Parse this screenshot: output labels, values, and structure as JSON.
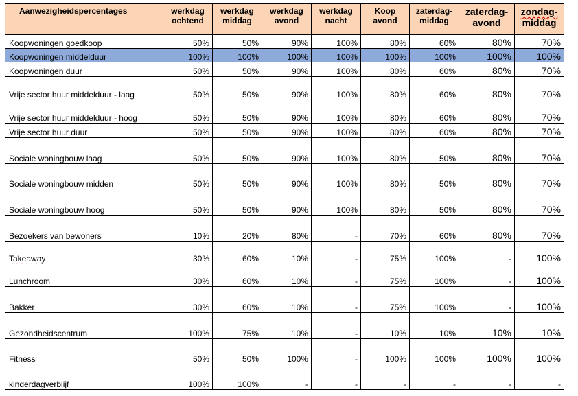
{
  "header": {
    "title": "Aanwezigheidspercentages",
    "columns": [
      [
        "werkdag",
        "ochtend"
      ],
      [
        "werkdag",
        "middag"
      ],
      [
        "werkdag",
        "avond"
      ],
      [
        "werkdag",
        "nacht"
      ],
      [
        "Koop",
        "avond"
      ],
      [
        "zaterdag-",
        "middag"
      ],
      [
        "zaterdag-",
        "avond"
      ],
      [
        "zondag-",
        "middag"
      ]
    ]
  },
  "rows": [
    {
      "name": "Koopwoningen goedkoop",
      "values": [
        "50%",
        "50%",
        "90%",
        "100%",
        "80%",
        "60%",
        "80%",
        "70%"
      ]
    },
    {
      "name": "Koopwoningen middelduur",
      "values": [
        "100%",
        "100%",
        "100%",
        "100%",
        "100%",
        "100%",
        "100%",
        "100%"
      ],
      "highlight": true
    },
    {
      "name": "Koopwoningen duur",
      "values": [
        "50%",
        "50%",
        "90%",
        "100%",
        "80%",
        "60%",
        "80%",
        "70%"
      ]
    },
    {
      "name": "Vrije sector huur middelduur - laag",
      "values": [
        "50%",
        "50%",
        "90%",
        "100%",
        "80%",
        "60%",
        "80%",
        "70%"
      ]
    },
    {
      "name": "Vrije sector huur middelduur - hoog",
      "values": [
        "50%",
        "50%",
        "90%",
        "100%",
        "80%",
        "60%",
        "80%",
        "70%"
      ]
    },
    {
      "name": "Vrije sector huur duur",
      "values": [
        "50%",
        "50%",
        "90%",
        "100%",
        "80%",
        "60%",
        "80%",
        "70%"
      ]
    },
    {
      "name": "Sociale woningbouw laag",
      "values": [
        "50%",
        "50%",
        "90%",
        "100%",
        "80%",
        "50%",
        "80%",
        "70%"
      ]
    },
    {
      "name": "Sociale woningbouw midden",
      "values": [
        "50%",
        "50%",
        "90%",
        "100%",
        "80%",
        "50%",
        "80%",
        "70%"
      ]
    },
    {
      "name": "Sociale woningbouw hoog",
      "values": [
        "50%",
        "50%",
        "90%",
        "100%",
        "80%",
        "50%",
        "80%",
        "70%"
      ]
    },
    {
      "name": "Bezoekers van bewoners",
      "values": [
        "10%",
        "20%",
        "80%",
        "-",
        "70%",
        "60%",
        "80%",
        "70%"
      ]
    },
    {
      "name": "Takeaway",
      "values": [
        "30%",
        "60%",
        "10%",
        "-",
        "75%",
        "100%",
        "-",
        "100%"
      ],
      "spellcheck": true
    },
    {
      "name": "Lunchroom",
      "values": [
        "30%",
        "60%",
        "10%",
        "-",
        "75%",
        "100%",
        "-",
        "100%"
      ]
    },
    {
      "name": "Bakker",
      "values": [
        "30%",
        "60%",
        "10%",
        "-",
        "75%",
        "100%",
        "-",
        "100%"
      ]
    },
    {
      "name": "Gezondheidscentrum",
      "values": [
        "100%",
        "75%",
        "10%",
        "-",
        "10%",
        "10%",
        "10%",
        "10%"
      ]
    },
    {
      "name": "Fitness",
      "values": [
        "50%",
        "50%",
        "100%",
        "-",
        "100%",
        "100%",
        "100%",
        "100%"
      ]
    },
    {
      "name": "kinderdagverblijf",
      "values": [
        "100%",
        "100%",
        "-",
        "-",
        "-",
        "-",
        "-",
        "-"
      ]
    }
  ]
}
